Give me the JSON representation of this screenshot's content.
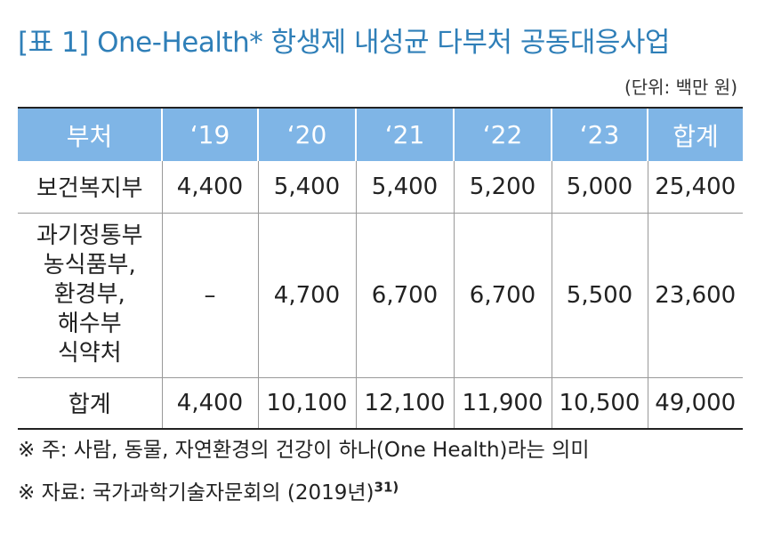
{
  "title": "[표 1] One-Health* 항생제 내성균 다부처 공동대응사업",
  "unit": "(단위: 백만 원)",
  "table": {
    "headers": [
      "부처",
      "‘19",
      "‘20",
      "‘21",
      "‘22",
      "‘23",
      "합계"
    ],
    "rows": [
      {
        "category": [
          "보건복지부"
        ],
        "values": [
          "4,400",
          "5,400",
          "5,400",
          "5,200",
          "5,000",
          "25,400"
        ]
      },
      {
        "category": [
          "과기정통부",
          "농식품부,",
          "환경부,",
          "해수부",
          "식약처"
        ],
        "values": [
          "–",
          "4,700",
          "6,700",
          "6,700",
          "5,500",
          "23,600"
        ]
      },
      {
        "category": [
          "합계"
        ],
        "values": [
          "4,400",
          "10,100",
          "12,100",
          "11,900",
          "10,500",
          "49,000"
        ]
      }
    ]
  },
  "notes": {
    "note1": "※ 주: 사람, 동물, 자연환경의 건강이 하나(One Health)라는 의미",
    "note2": "※ 자료: 국가과학기술자문회의 (2019년)",
    "note2_sup": "31)"
  }
}
